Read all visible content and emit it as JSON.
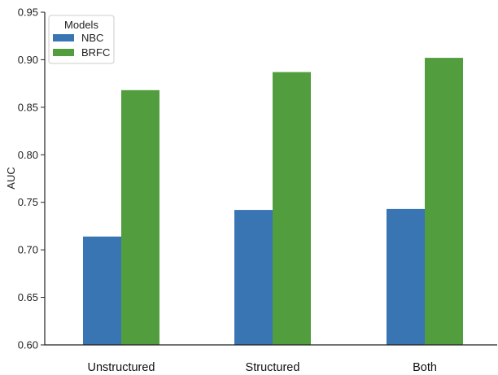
{
  "chart_data": {
    "type": "bar",
    "categories": [
      "Unstructured",
      "Structured",
      "Both"
    ],
    "series": [
      {
        "name": "NBC",
        "values": [
          0.714,
          0.742,
          0.743
        ],
        "color": "#3a75b3"
      },
      {
        "name": "BRFC",
        "values": [
          0.868,
          0.887,
          0.902
        ],
        "color": "#529e3e"
      }
    ],
    "title": "",
    "xlabel": "",
    "ylabel": "AUC",
    "ylim": [
      0.6,
      0.95
    ],
    "yticks": [
      "0.60",
      "0.65",
      "0.70",
      "0.75",
      "0.80",
      "0.85",
      "0.90",
      "0.95"
    ],
    "grid": false,
    "legend": {
      "title": "Models",
      "placement": "top-left"
    }
  }
}
